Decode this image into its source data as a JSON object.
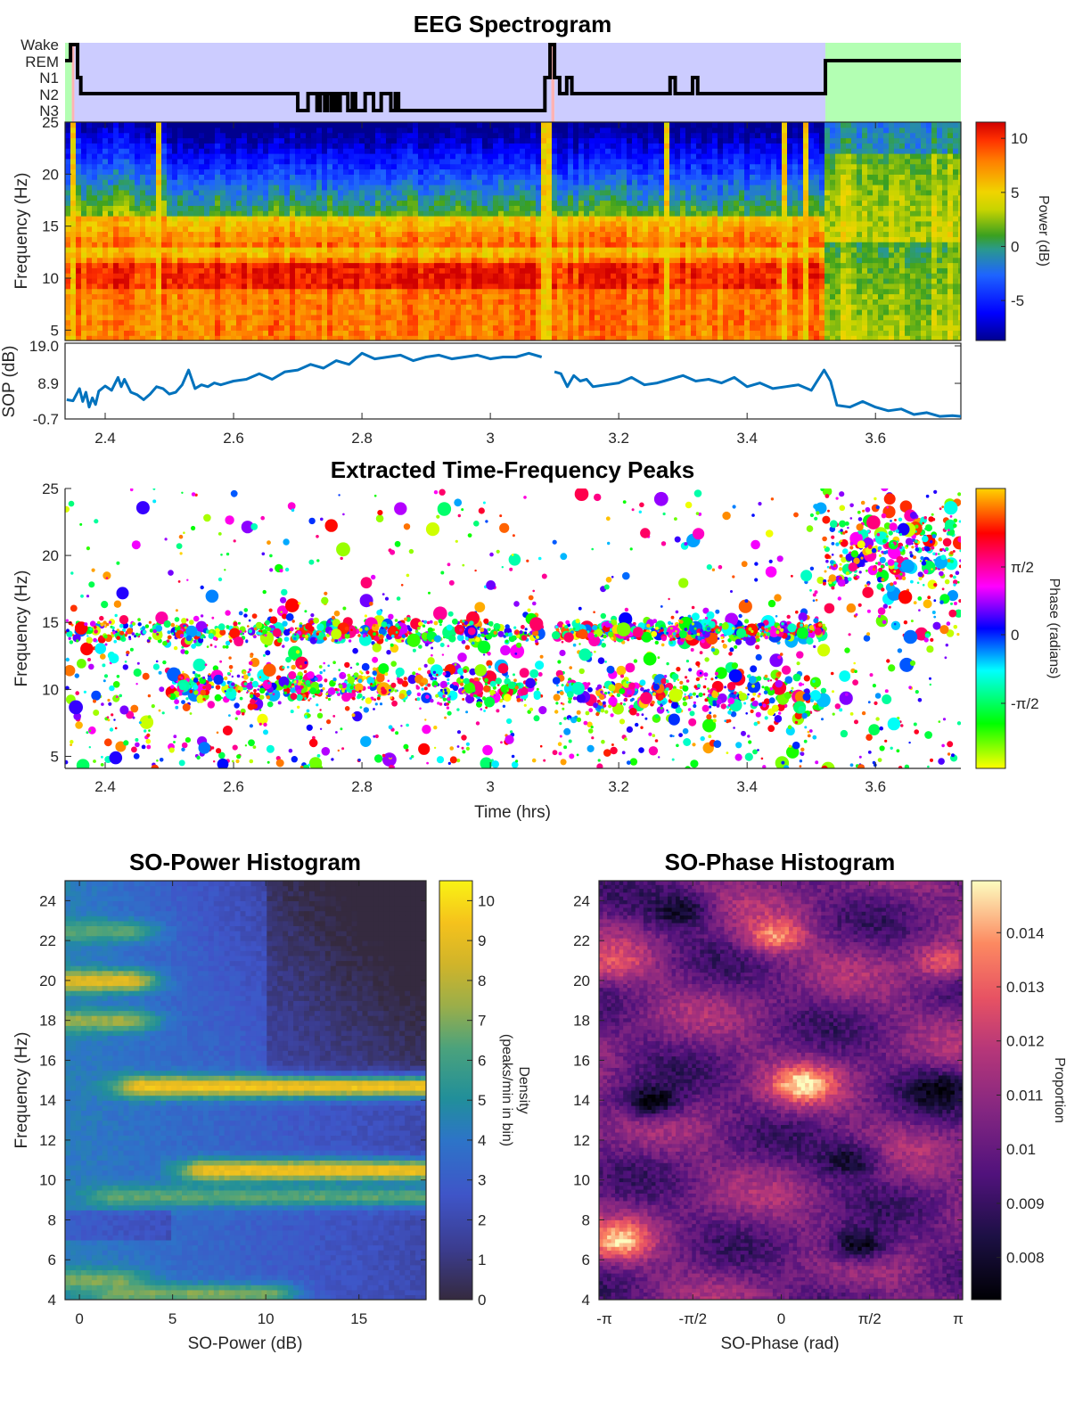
{
  "chart_data": [
    {
      "id": "hypnogram",
      "type": "line",
      "title": "EEG Spectrogram",
      "ylabels": [
        "Wake",
        "REM",
        "N1",
        "N2",
        "N3"
      ],
      "xlim": [
        2.3375,
        3.733
      ],
      "stage_colors": {
        "Wake": "#b3ffb3",
        "REM": "#ffb3b3",
        "NREM": "#ccccff"
      },
      "background_segments": [
        {
          "start": 2.3375,
          "end": 2.348,
          "stage": "Wake"
        },
        {
          "start": 2.348,
          "end": 2.352,
          "stage": "REM"
        },
        {
          "start": 2.352,
          "end": 3.095,
          "stage": "NREM"
        },
        {
          "start": 3.095,
          "end": 3.1,
          "stage": "REM"
        },
        {
          "start": 3.1,
          "end": 3.522,
          "stage": "NREM"
        },
        {
          "start": 3.522,
          "end": 3.733,
          "stage": "Wake"
        }
      ],
      "steps": [
        [
          2.3375,
          "REM"
        ],
        [
          2.346,
          "Wake"
        ],
        [
          2.357,
          "N1"
        ],
        [
          2.362,
          "N2"
        ],
        [
          2.7,
          "N3"
        ],
        [
          2.716,
          "N2"
        ],
        [
          2.73,
          "N3"
        ],
        [
          2.735,
          "N2"
        ],
        [
          2.742,
          "N3"
        ],
        [
          2.746,
          "N2"
        ],
        [
          2.752,
          "N3"
        ],
        [
          2.757,
          "N2"
        ],
        [
          2.762,
          "N3"
        ],
        [
          2.766,
          "N2"
        ],
        [
          2.778,
          "N3"
        ],
        [
          2.785,
          "N2"
        ],
        [
          2.79,
          "N3"
        ],
        [
          2.805,
          "N2"
        ],
        [
          2.818,
          "N3"
        ],
        [
          2.83,
          "N2"
        ],
        [
          2.845,
          "N3"
        ],
        [
          2.852,
          "N2"
        ],
        [
          2.857,
          "N3"
        ],
        [
          3.085,
          "N1"
        ],
        [
          3.093,
          "Wake"
        ],
        [
          3.1,
          "N1"
        ],
        [
          3.108,
          "N2"
        ],
        [
          3.119,
          "N1"
        ],
        [
          3.127,
          "N2"
        ],
        [
          3.28,
          "N1"
        ],
        [
          3.288,
          "N2"
        ],
        [
          3.315,
          "N1"
        ],
        [
          3.323,
          "N2"
        ],
        [
          3.522,
          "REM"
        ],
        [
          3.733,
          "REM"
        ]
      ]
    },
    {
      "id": "spectrogram",
      "type": "heatmap",
      "ylabel": "Frequency (Hz)",
      "yticks": [
        5,
        10,
        15,
        20,
        25
      ],
      "ylim": [
        4,
        25
      ],
      "xlim": [
        2.3375,
        3.733
      ],
      "colorbar": {
        "label": "Power (dB)",
        "ticks": [
          10,
          5,
          0,
          -5
        ],
        "clim": [
          -8.7,
          11.5
        ]
      },
      "colormap": "jet",
      "features": {
        "sigma_band_hz": [
          13,
          15
        ],
        "alpha_band_hz": [
          9,
          11
        ],
        "wake_onset_hrs": 3.522,
        "artifact_columns_hrs": [
          2.352,
          2.48,
          3.085,
          3.093,
          3.275,
          3.46,
          3.49
        ]
      }
    },
    {
      "id": "sop",
      "type": "line",
      "ylabel": "SOP (dB)",
      "yticks": [
        "19.0",
        "8.9",
        "-0.7"
      ],
      "ylim": [
        -0.7,
        19.0
      ],
      "xticks": [
        "2.4",
        "2.6",
        "2.8",
        "3",
        "3.2",
        "3.4",
        "3.6"
      ],
      "xlim": [
        2.3375,
        3.733
      ],
      "color": "#0072bd",
      "x": [
        2.34,
        2.35,
        2.36,
        2.365,
        2.37,
        2.375,
        2.38,
        2.385,
        2.39,
        2.4,
        2.41,
        2.42,
        2.425,
        2.43,
        2.44,
        2.45,
        2.46,
        2.47,
        2.48,
        2.49,
        2.5,
        2.51,
        2.52,
        2.53,
        2.54,
        2.55,
        2.56,
        2.57,
        2.58,
        2.6,
        2.62,
        2.64,
        2.66,
        2.68,
        2.7,
        2.72,
        2.74,
        2.76,
        2.78,
        2.8,
        2.82,
        2.84,
        2.86,
        2.88,
        2.9,
        2.92,
        2.94,
        2.96,
        2.98,
        3.0,
        3.02,
        3.04,
        3.06,
        3.08,
        3.1,
        3.11,
        3.12,
        3.13,
        3.14,
        3.15,
        3.16,
        3.18,
        3.2,
        3.22,
        3.24,
        3.26,
        3.28,
        3.3,
        3.32,
        3.34,
        3.36,
        3.38,
        3.4,
        3.42,
        3.44,
        3.46,
        3.48,
        3.5,
        3.52,
        3.53,
        3.54,
        3.56,
        3.58,
        3.6,
        3.62,
        3.64,
        3.66,
        3.68,
        3.7,
        3.72,
        3.733
      ],
      "y": [
        4.5,
        4.2,
        7.5,
        4.0,
        6.5,
        2.5,
        5.0,
        3.2,
        6.8,
        8.2,
        7.0,
        10.5,
        8.0,
        10.0,
        6.5,
        5.8,
        4.5,
        6.0,
        8.0,
        7.5,
        6.0,
        6.5,
        8.5,
        12.5,
        7.5,
        8.5,
        8.0,
        9.0,
        8.5,
        9.5,
        10.0,
        11.5,
        10.0,
        12.0,
        12.5,
        14.0,
        13.0,
        15.0,
        14.0,
        17.0,
        15.5,
        16.0,
        16.5,
        15.0,
        16.0,
        16.5,
        15.5,
        16.0,
        16.5,
        15.5,
        16.0,
        16.0,
        17.0,
        16.0,
        12.0,
        11.5,
        8.0,
        11.0,
        9.5,
        10.0,
        8.0,
        8.5,
        9.0,
        10.5,
        8.5,
        9.0,
        10.0,
        11.0,
        9.5,
        10.0,
        9.0,
        10.5,
        8.0,
        9.0,
        7.5,
        8.0,
        8.5,
        7.0,
        12.5,
        9.5,
        3.0,
        2.5,
        4.0,
        2.5,
        1.5,
        2.0,
        0.5,
        1.0,
        0.0,
        0.2,
        0.0
      ]
    },
    {
      "id": "peaks",
      "type": "scatter",
      "title": "Extracted Time-Frequency Peaks",
      "xlabel": "Time (hrs)",
      "ylabel": "Frequency (Hz)",
      "xticks": [
        "2.4",
        "2.6",
        "2.8",
        "3",
        "3.2",
        "3.4",
        "3.6"
      ],
      "yticks": [
        5,
        10,
        15,
        20,
        25
      ],
      "xlim": [
        2.3375,
        3.733
      ],
      "ylim": [
        4.1,
        25
      ],
      "colorbar": {
        "label": "Phase (radians)",
        "ticks": [
          "π/2",
          "0",
          "-π/2"
        ],
        "clim": [
          -3.1416,
          3.1416
        ]
      },
      "colormap": "hsv-phase",
      "clusters": [
        {
          "t_range": [
            2.34,
            3.08
          ],
          "freq_center": 14.3,
          "freq_spread": 0.6,
          "density": "high"
        },
        {
          "t_range": [
            2.5,
            3.08
          ],
          "freq_center": 10.2,
          "freq_spread": 0.9,
          "density": "high"
        },
        {
          "t_range": [
            3.1,
            3.52
          ],
          "freq_center": 14.4,
          "freq_spread": 0.5,
          "density": "high"
        },
        {
          "t_range": [
            3.1,
            3.52
          ],
          "freq_center": 9.5,
          "freq_spread": 1.2,
          "density": "medium"
        },
        {
          "t_range": [
            3.52,
            3.733
          ],
          "freq_center": 20.5,
          "freq_spread": 2.5,
          "density": "medium"
        }
      ],
      "gap_hrs": [
        3.085,
        3.1
      ]
    },
    {
      "id": "so_power_hist",
      "type": "heatmap",
      "title": "SO-Power Histogram",
      "xlabel": "SO-Power (dB)",
      "ylabel": "Frequency (Hz)",
      "xticks": [
        0,
        5,
        10,
        15
      ],
      "yticks": [
        4,
        6,
        8,
        10,
        12,
        14,
        16,
        18,
        20,
        22,
        24
      ],
      "xlim": [
        -0.77,
        18.6
      ],
      "ylim": [
        4,
        25
      ],
      "colorbar": {
        "label_line1": "Density",
        "label_line2": "(peaks/min in bin)",
        "ticks": [
          10,
          9,
          8,
          7,
          6,
          5,
          4,
          3,
          2,
          1,
          0
        ],
        "clim": [
          0,
          10.5
        ]
      },
      "colormap": "parula",
      "ridges": [
        {
          "freq": 20.0,
          "x_range": [
            -0.77,
            2.5
          ],
          "peak": 9.0
        },
        {
          "freq": 18.0,
          "x_range": [
            -0.77,
            2.5
          ],
          "peak": 7.5
        },
        {
          "freq": 22.5,
          "x_range": [
            -0.77,
            2.5
          ],
          "peak": 6.5
        },
        {
          "freq": 14.7,
          "x_range": [
            3.5,
            18.6
          ],
          "peak": 9.5
        },
        {
          "freq": 10.5,
          "x_range": [
            7.0,
            18.6
          ],
          "peak": 9.5
        },
        {
          "freq": 9.2,
          "x_range": [
            2.0,
            18.6
          ],
          "peak": 6.5
        },
        {
          "freq": 5.0,
          "x_range": [
            -0.77,
            2.0
          ],
          "peak": 7.0
        },
        {
          "freq": 4.3,
          "x_range": [
            2.0,
            10.0
          ],
          "peak": 7.0
        }
      ]
    },
    {
      "id": "so_phase_hist",
      "type": "heatmap",
      "title": "SO-Phase Histogram",
      "xlabel": "SO-Phase (rad)",
      "ylabel": "",
      "xticks": [
        "-π",
        "-π/2",
        "0",
        "π/2",
        "π"
      ],
      "yticks": [
        4,
        6,
        8,
        10,
        12,
        14,
        16,
        18,
        20,
        22,
        24
      ],
      "xlim": [
        -3.1416,
        3.1416
      ],
      "ylim": [
        4,
        25
      ],
      "colorbar": {
        "label": "Proportion",
        "ticks": [
          "0.014",
          "0.013",
          "0.012",
          "0.011",
          "0.01",
          "0.009",
          "0.008"
        ],
        "clim": [
          0.00722,
          0.01496
        ]
      },
      "colormap": "magma",
      "hotspots": [
        {
          "phase": 0.4,
          "freq": 14.8,
          "value": 0.015
        },
        {
          "phase": -0.1,
          "freq": 22.3,
          "value": 0.0138
        },
        {
          "phase": -2.9,
          "freq": 7.0,
          "value": 0.0148
        },
        {
          "phase": -2.9,
          "freq": 21.0,
          "value": 0.0128
        },
        {
          "phase": 2.9,
          "freq": 21.0,
          "value": 0.0128
        }
      ],
      "coldspots": [
        {
          "phase": -2.3,
          "freq": 14.0,
          "value": 0.0073
        },
        {
          "phase": 2.8,
          "freq": 14.5,
          "value": 0.0074
        },
        {
          "phase": 1.4,
          "freq": 6.8,
          "value": 0.0076
        },
        {
          "phase": -1.8,
          "freq": 23.5,
          "value": 0.0078
        },
        {
          "phase": 1.2,
          "freq": 11.0,
          "value": 0.008
        }
      ]
    }
  ]
}
